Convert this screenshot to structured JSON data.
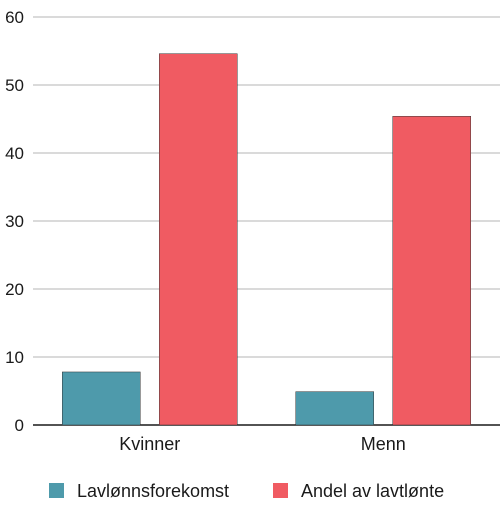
{
  "chart_data": {
    "type": "bar",
    "categories": [
      "Kvinner",
      "Menn"
    ],
    "series": [
      {
        "name": "Lavlønnsforekomst",
        "color": "#4e9aab",
        "values": [
          7.8,
          4.9
        ]
      },
      {
        "name": "Andel av lavtlønte",
        "color": "#f05b62",
        "values": [
          54.6,
          45.4
        ]
      }
    ],
    "yticks": [
      "0",
      "10",
      "20",
      "30",
      "40",
      "50",
      "60"
    ],
    "ylim": [
      0,
      60
    ],
    "grid": true,
    "legend_position": "bottom"
  }
}
